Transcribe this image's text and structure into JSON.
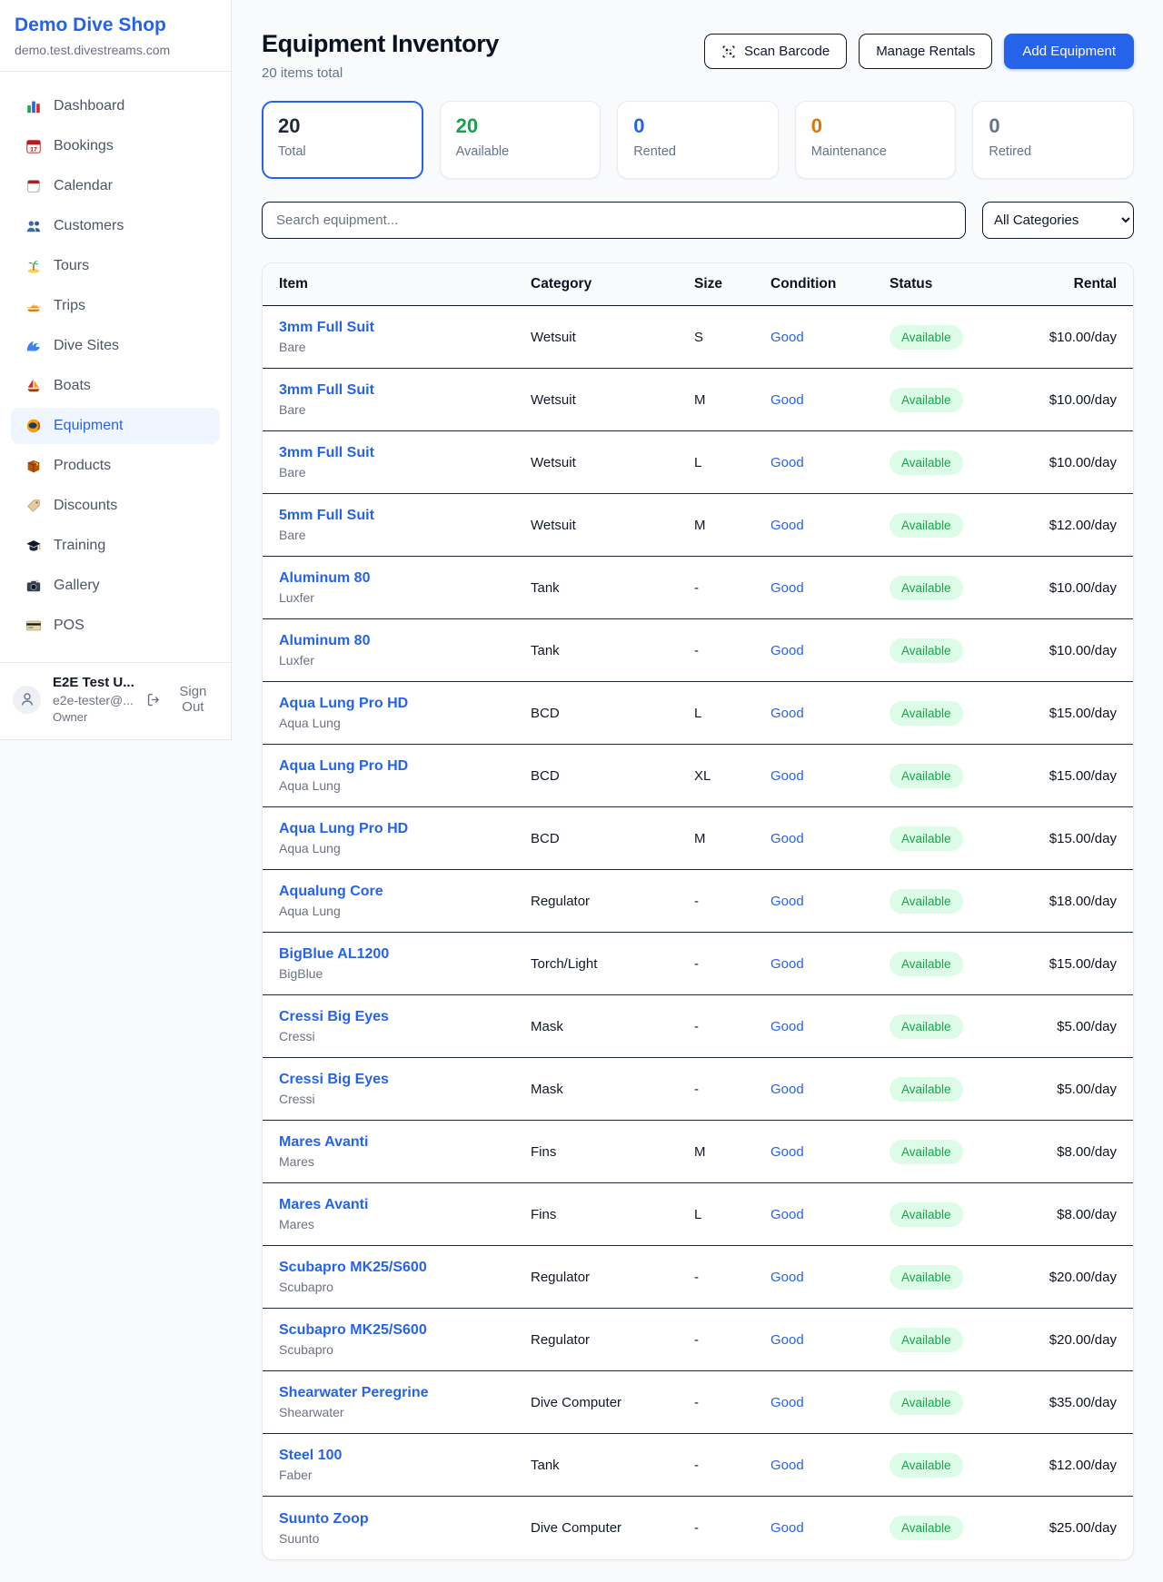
{
  "colors": {
    "accent": "#2563eb",
    "available_text": "#16a34a",
    "available_bg": "#dcfce7",
    "maintenance": "#d97706",
    "total_value": "#1e293b",
    "retired_value": "#64748b"
  },
  "sidebar": {
    "brand": {
      "name": "Demo Dive Shop",
      "domain": "demo.test.divestreams.com"
    },
    "nav": [
      {
        "label": "Dashboard",
        "icon": "bar-chart",
        "active": false
      },
      {
        "label": "Bookings",
        "icon": "calendar-date",
        "active": false
      },
      {
        "label": "Calendar",
        "icon": "calendar",
        "active": false
      },
      {
        "label": "Customers",
        "icon": "users",
        "active": false
      },
      {
        "label": "Tours",
        "icon": "island",
        "active": false
      },
      {
        "label": "Trips",
        "icon": "speedboat",
        "active": false
      },
      {
        "label": "Dive Sites",
        "icon": "wave",
        "active": false
      },
      {
        "label": "Boats",
        "icon": "sailboat",
        "active": false
      },
      {
        "label": "Equipment",
        "icon": "diving-mask",
        "active": true
      },
      {
        "label": "Products",
        "icon": "package",
        "active": false
      },
      {
        "label": "Discounts",
        "icon": "tag",
        "active": false
      },
      {
        "label": "Training",
        "icon": "graduation-cap",
        "active": false
      },
      {
        "label": "Gallery",
        "icon": "camera",
        "active": false
      },
      {
        "label": "POS",
        "icon": "credit-card",
        "active": false
      }
    ],
    "user": {
      "name": "E2E Test U...",
      "email": "e2e-tester@...",
      "role": "Owner",
      "sign_out": "Sign Out"
    }
  },
  "header": {
    "title": "Equipment Inventory",
    "subtitle": "20 items total",
    "buttons": {
      "scan": "Scan Barcode",
      "manage": "Manage Rentals",
      "add": "Add Equipment"
    }
  },
  "stats": [
    {
      "value": "20",
      "label": "Total",
      "color": "#1e293b",
      "selected": true
    },
    {
      "value": "20",
      "label": "Available",
      "color": "#16a34a",
      "selected": false
    },
    {
      "value": "0",
      "label": "Rented",
      "color": "#2563eb",
      "selected": false
    },
    {
      "value": "0",
      "label": "Maintenance",
      "color": "#d97706",
      "selected": false
    },
    {
      "value": "0",
      "label": "Retired",
      "color": "#64748b",
      "selected": false
    }
  ],
  "filters": {
    "search_placeholder": "Search equipment...",
    "category_selected": "All Categories"
  },
  "table": {
    "columns": [
      "Item",
      "Category",
      "Size",
      "Condition",
      "Status",
      "Rental"
    ],
    "rows": [
      {
        "item": "3mm Full Suit",
        "brand": "Bare",
        "category": "Wetsuit",
        "size": "S",
        "condition": "Good",
        "status": "Available",
        "rental": "$10.00/day"
      },
      {
        "item": "3mm Full Suit",
        "brand": "Bare",
        "category": "Wetsuit",
        "size": "M",
        "condition": "Good",
        "status": "Available",
        "rental": "$10.00/day"
      },
      {
        "item": "3mm Full Suit",
        "brand": "Bare",
        "category": "Wetsuit",
        "size": "L",
        "condition": "Good",
        "status": "Available",
        "rental": "$10.00/day"
      },
      {
        "item": "5mm Full Suit",
        "brand": "Bare",
        "category": "Wetsuit",
        "size": "M",
        "condition": "Good",
        "status": "Available",
        "rental": "$12.00/day"
      },
      {
        "item": "Aluminum 80",
        "brand": "Luxfer",
        "category": "Tank",
        "size": "-",
        "condition": "Good",
        "status": "Available",
        "rental": "$10.00/day"
      },
      {
        "item": "Aluminum 80",
        "brand": "Luxfer",
        "category": "Tank",
        "size": "-",
        "condition": "Good",
        "status": "Available",
        "rental": "$10.00/day"
      },
      {
        "item": "Aqua Lung Pro HD",
        "brand": "Aqua Lung",
        "category": "BCD",
        "size": "L",
        "condition": "Good",
        "status": "Available",
        "rental": "$15.00/day"
      },
      {
        "item": "Aqua Lung Pro HD",
        "brand": "Aqua Lung",
        "category": "BCD",
        "size": "XL",
        "condition": "Good",
        "status": "Available",
        "rental": "$15.00/day"
      },
      {
        "item": "Aqua Lung Pro HD",
        "brand": "Aqua Lung",
        "category": "BCD",
        "size": "M",
        "condition": "Good",
        "status": "Available",
        "rental": "$15.00/day"
      },
      {
        "item": "Aqualung Core",
        "brand": "Aqua Lung",
        "category": "Regulator",
        "size": "-",
        "condition": "Good",
        "status": "Available",
        "rental": "$18.00/day"
      },
      {
        "item": "BigBlue AL1200",
        "brand": "BigBlue",
        "category": "Torch/Light",
        "size": "-",
        "condition": "Good",
        "status": "Available",
        "rental": "$15.00/day"
      },
      {
        "item": "Cressi Big Eyes",
        "brand": "Cressi",
        "category": "Mask",
        "size": "-",
        "condition": "Good",
        "status": "Available",
        "rental": "$5.00/day"
      },
      {
        "item": "Cressi Big Eyes",
        "brand": "Cressi",
        "category": "Mask",
        "size": "-",
        "condition": "Good",
        "status": "Available",
        "rental": "$5.00/day"
      },
      {
        "item": "Mares Avanti",
        "brand": "Mares",
        "category": "Fins",
        "size": "M",
        "condition": "Good",
        "status": "Available",
        "rental": "$8.00/day"
      },
      {
        "item": "Mares Avanti",
        "brand": "Mares",
        "category": "Fins",
        "size": "L",
        "condition": "Good",
        "status": "Available",
        "rental": "$8.00/day"
      },
      {
        "item": "Scubapro MK25/S600",
        "brand": "Scubapro",
        "category": "Regulator",
        "size": "-",
        "condition": "Good",
        "status": "Available",
        "rental": "$20.00/day"
      },
      {
        "item": "Scubapro MK25/S600",
        "brand": "Scubapro",
        "category": "Regulator",
        "size": "-",
        "condition": "Good",
        "status": "Available",
        "rental": "$20.00/day"
      },
      {
        "item": "Shearwater Peregrine",
        "brand": "Shearwater",
        "category": "Dive Computer",
        "size": "-",
        "condition": "Good",
        "status": "Available",
        "rental": "$35.00/day"
      },
      {
        "item": "Steel 100",
        "brand": "Faber",
        "category": "Tank",
        "size": "-",
        "condition": "Good",
        "status": "Available",
        "rental": "$12.00/day"
      },
      {
        "item": "Suunto Zoop",
        "brand": "Suunto",
        "category": "Dive Computer",
        "size": "-",
        "condition": "Good",
        "status": "Available",
        "rental": "$25.00/day"
      }
    ]
  }
}
